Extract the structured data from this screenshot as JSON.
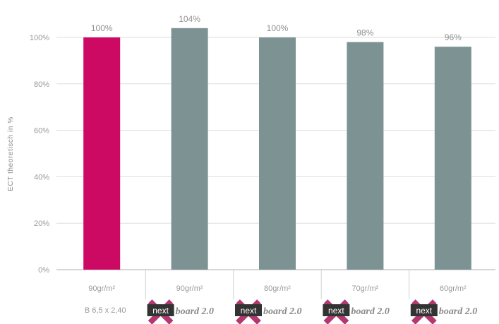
{
  "chart_data": {
    "type": "bar",
    "ylabel": "ECT theoretisch in %",
    "ylim": [
      0,
      100
    ],
    "yticks": [
      "0%",
      "20%",
      "40%",
      "60%",
      "80%",
      "100%"
    ],
    "categories": [
      "90gr/m²",
      "90gr/m²",
      "80gr/m²",
      "70gr/m²",
      "60gr/m²"
    ],
    "values": [
      100,
      104,
      100,
      98,
      96
    ],
    "data_labels": [
      "100%",
      "104%",
      "100%",
      "98%",
      "96%"
    ],
    "sub_labels": [
      "B 6,5 x 2,40",
      "next board 2.0",
      "next board 2.0",
      "next board 2.0",
      "next board 2.0"
    ],
    "grid": true,
    "colors": {
      "reference_bar": "#cc0a64",
      "bar": "#7d9393",
      "logo_x": "#b3386f",
      "logo_box": "#333333"
    }
  },
  "logo": {
    "box_text": "next",
    "rest_text": "board 2.0"
  }
}
